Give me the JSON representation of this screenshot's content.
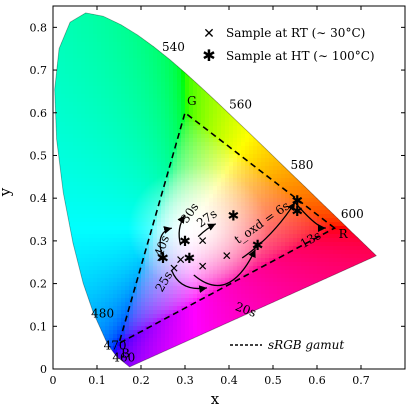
{
  "chart_data": {
    "type": "scatter",
    "xlabel": "x",
    "ylabel": "y",
    "xlim": [
      0,
      0.8
    ],
    "ylim": [
      0,
      0.85
    ],
    "xticks": [
      0,
      0.1,
      0.2,
      0.3,
      0.4,
      0.5,
      0.6,
      0.7
    ],
    "yticks": [
      0,
      0.1,
      0.2,
      0.3,
      0.4,
      0.5,
      0.6,
      0.7,
      0.8
    ],
    "grid": false,
    "legend_position": "top-right",
    "locus": [
      [
        0.1741,
        0.005
      ],
      [
        0.144,
        0.0297
      ],
      [
        0.1241,
        0.0578
      ],
      [
        0.0913,
        0.1327
      ],
      [
        0.0687,
        0.2007
      ],
      [
        0.0454,
        0.295
      ],
      [
        0.0235,
        0.4127
      ],
      [
        0.0082,
        0.5384
      ],
      [
        0.0039,
        0.6548
      ],
      [
        0.0139,
        0.7502
      ],
      [
        0.0389,
        0.812
      ],
      [
        0.0743,
        0.8338
      ],
      [
        0.1142,
        0.8262
      ],
      [
        0.1547,
        0.8059
      ],
      [
        0.1929,
        0.7816
      ],
      [
        0.2296,
        0.7543
      ],
      [
        0.2658,
        0.7243
      ],
      [
        0.3016,
        0.6923
      ],
      [
        0.3373,
        0.6589
      ],
      [
        0.3731,
        0.6245
      ],
      [
        0.4087,
        0.5896
      ],
      [
        0.4441,
        0.5547
      ],
      [
        0.4788,
        0.5202
      ],
      [
        0.5125,
        0.4866
      ],
      [
        0.5448,
        0.4544
      ],
      [
        0.5752,
        0.4242
      ],
      [
        0.6029,
        0.3965
      ],
      [
        0.627,
        0.3725
      ],
      [
        0.6482,
        0.3514
      ],
      [
        0.6658,
        0.334
      ],
      [
        0.6801,
        0.3197
      ],
      [
        0.6915,
        0.3083
      ],
      [
        0.7006,
        0.2993
      ],
      [
        0.714,
        0.2859
      ],
      [
        0.7347,
        0.2653
      ]
    ],
    "wavelength_labels": [
      {
        "label": "460",
        "x": 0.1441,
        "y": 0.0297
      },
      {
        "label": "470",
        "x": 0.1241,
        "y": 0.0578
      },
      {
        "label": "480",
        "x": 0.0913,
        "y": 0.1327
      },
      {
        "label": "540",
        "x": 0.2296,
        "y": 0.7543
      },
      {
        "label": "560",
        "x": 0.3731,
        "y": 0.6245
      },
      {
        "label": "580",
        "x": 0.5125,
        "y": 0.4866
      },
      {
        "label": "600",
        "x": 0.627,
        "y": 0.3725
      }
    ],
    "gamut": {
      "name": "sRGB gamut",
      "vertices": [
        {
          "label": "R",
          "x": 0.64,
          "y": 0.33
        },
        {
          "label": "G",
          "x": 0.3,
          "y": 0.6
        },
        {
          "label": "B",
          "x": 0.15,
          "y": 0.06
        }
      ]
    },
    "series": [
      {
        "name": "Sample at RT (∼ 30°C)",
        "marker": "x",
        "points": [
          [
            0.245,
            0.26
          ],
          [
            0.29,
            0.255
          ],
          [
            0.275,
            0.235
          ],
          [
            0.34,
            0.3
          ],
          [
            0.34,
            0.24
          ],
          [
            0.395,
            0.265
          ]
        ]
      },
      {
        "name": "Sample at HT (∼ 100°C)",
        "marker": "star",
        "points": [
          [
            0.25,
            0.26
          ],
          [
            0.3,
            0.3
          ],
          [
            0.31,
            0.26
          ],
          [
            0.41,
            0.36
          ],
          [
            0.465,
            0.29
          ],
          [
            0.555,
            0.395
          ],
          [
            0.555,
            0.37
          ]
        ]
      }
    ],
    "annotations": [
      {
        "text": "40s",
        "x": 0.256,
        "y": 0.285
      },
      {
        "text": "30s",
        "x": 0.318,
        "y": 0.36
      },
      {
        "text": "27s",
        "x": 0.355,
        "y": 0.345
      },
      {
        "text": "t_oxd = 6s",
        "x": 0.48,
        "y": 0.335
      },
      {
        "text": "13s",
        "x": 0.59,
        "y": 0.295
      },
      {
        "text": "25s",
        "x": 0.26,
        "y": 0.2
      },
      {
        "text": "20s",
        "x": 0.435,
        "y": 0.13
      }
    ],
    "legend_entries": [
      "Sample at RT (∼ 30°C)",
      "Sample at HT (∼ 100°C)"
    ]
  }
}
